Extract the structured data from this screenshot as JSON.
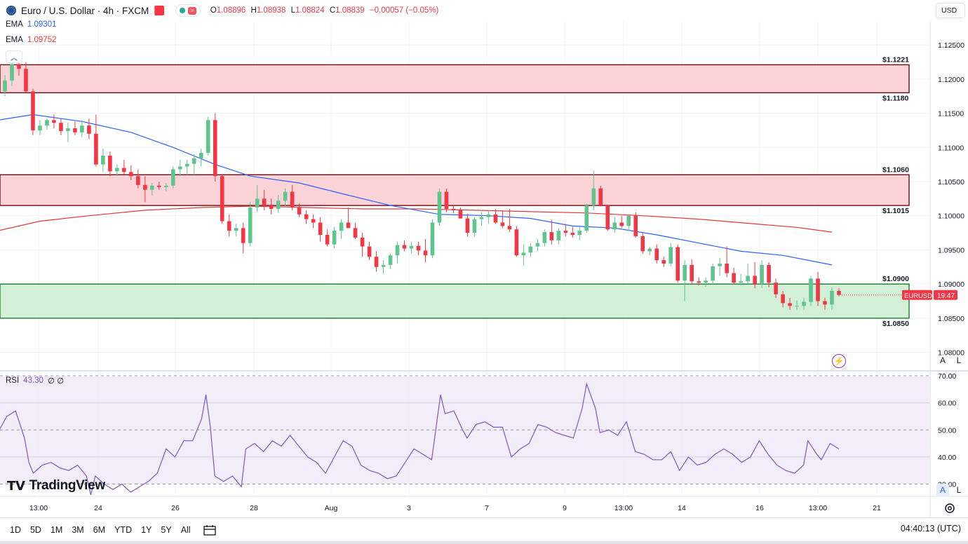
{
  "header": {
    "symbol_title": "Euro / U.S. Dollar · 4h · FXCM",
    "ohlc": {
      "o_label": "O",
      "o": "1.08896",
      "h_label": "H",
      "h": "1.08938",
      "l_label": "L",
      "l": "1.08824",
      "c_label": "C",
      "c": "1.08839",
      "change": "−0.00057 (−0.05%)"
    },
    "ema1": {
      "label": "EMA",
      "value": "1.09301"
    },
    "ema2": {
      "label": "EMA",
      "value": "1.09752"
    },
    "currency": "USD"
  },
  "colors": {
    "up": "#22ab94",
    "down": "#f23645",
    "up_fill": "#5fc48e",
    "ema_fast": "#2962ff",
    "ema_slow": "#e53935",
    "rsi": "#7e57c2",
    "zone_red_fill": "#fcd3d6",
    "zone_green_fill": "#d1f0d6"
  },
  "price_scale": {
    "labels": [
      "1.12500",
      "1.12000",
      "1.11500",
      "1.11000",
      "1.10500",
      "1.10000",
      "1.09500",
      "1.09000",
      "1.08500",
      "1.08000"
    ]
  },
  "rsi": {
    "label": "RSI",
    "value": "43.30",
    "extra": "∅ ∅",
    "scale_labels": [
      "70.00",
      "60.00",
      "50.00",
      "40.00",
      "30.00"
    ]
  },
  "time_axis": {
    "labels": [
      "13:00",
      "24",
      "26",
      "28",
      "Aug",
      "3",
      "7",
      "9",
      "13:00",
      "14",
      "16",
      "13:00",
      "21"
    ]
  },
  "price_tag": {
    "symbol": "EURUSD",
    "countdown": "19:47"
  },
  "toolbar": {
    "timeframes": [
      "1D",
      "5D",
      "1M",
      "3M",
      "6M",
      "YTD",
      "1Y",
      "5Y",
      "All"
    ],
    "clock": "04:40:13 (UTC)"
  },
  "scale_buttons": {
    "auto": "A",
    "log": "L"
  },
  "brand": "TradingView",
  "chart_data": {
    "type": "candlestick",
    "title": "Euro / U.S. Dollar · 4h · FXCM",
    "y_range": [
      1.0775,
      1.1285
    ],
    "zones": [
      {
        "label_top": "$1.1221",
        "label_bottom": "$1.1180",
        "top": 1.1221,
        "bottom": 1.118,
        "color": "red"
      },
      {
        "label_top": "$1.1060",
        "label_bottom": "$1.1015",
        "top": 1.106,
        "bottom": 1.1015,
        "color": "red"
      },
      {
        "label_top": "$1.0900",
        "label_bottom": "$1.0850",
        "top": 1.09,
        "bottom": 1.085,
        "color": "green"
      }
    ],
    "candles": [
      [
        1.12,
        1.1221,
        1.1172,
        1.1182
      ],
      [
        1.1182,
        1.1206,
        1.1175,
        1.1198
      ],
      [
        1.1198,
        1.1228,
        1.119,
        1.1222
      ],
      [
        1.1222,
        1.1232,
        1.1205,
        1.1215
      ],
      [
        1.1215,
        1.1225,
        1.118,
        1.1182
      ],
      [
        1.1182,
        1.1186,
        1.1118,
        1.1125
      ],
      [
        1.1125,
        1.114,
        1.1118,
        1.1132
      ],
      [
        1.1132,
        1.1142,
        1.1126,
        1.114
      ],
      [
        1.114,
        1.1148,
        1.1128,
        1.1136
      ],
      [
        1.1136,
        1.1142,
        1.1118,
        1.1124
      ],
      [
        1.1124,
        1.1136,
        1.1108,
        1.1128
      ],
      [
        1.1128,
        1.1138,
        1.1118,
        1.1122
      ],
      [
        1.1122,
        1.114,
        1.1115,
        1.1132
      ],
      [
        1.1132,
        1.1142,
        1.1112,
        1.112
      ],
      [
        1.112,
        1.1148,
        1.1072,
        1.1075
      ],
      [
        1.1075,
        1.1098,
        1.1064,
        1.1088
      ],
      [
        1.1088,
        1.1094,
        1.1058,
        1.1065
      ],
      [
        1.1065,
        1.1075,
        1.1058,
        1.107
      ],
      [
        1.107,
        1.1082,
        1.106,
        1.1064
      ],
      [
        1.1064,
        1.1074,
        1.1052,
        1.1058
      ],
      [
        1.1058,
        1.1068,
        1.104,
        1.1045
      ],
      [
        1.1045,
        1.1058,
        1.102,
        1.1038
      ],
      [
        1.1038,
        1.1048,
        1.103,
        1.1044
      ],
      [
        1.1044,
        1.105,
        1.1038,
        1.1042
      ],
      [
        1.1042,
        1.1048,
        1.1036,
        1.1044
      ],
      [
        1.1044,
        1.1072,
        1.104,
        1.1068
      ],
      [
        1.1068,
        1.1082,
        1.1058,
        1.1072
      ],
      [
        1.1072,
        1.1082,
        1.106,
        1.1076
      ],
      [
        1.1076,
        1.109,
        1.106,
        1.1084
      ],
      [
        1.1084,
        1.1098,
        1.1072,
        1.1092
      ],
      [
        1.1092,
        1.1145,
        1.1088,
        1.114
      ],
      [
        1.114,
        1.115,
        1.105,
        1.1058
      ],
      [
        1.1058,
        1.106,
        1.0988,
        1.0992
      ],
      [
        1.0992,
        1.1002,
        1.097,
        1.0978
      ],
      [
        1.0978,
        1.0988,
        1.097,
        1.0982
      ],
      [
        1.0982,
        1.099,
        1.0945,
        1.096
      ],
      [
        1.096,
        1.102,
        1.0955,
        1.1012
      ],
      [
        1.1012,
        1.1045,
        1.1005,
        1.1025
      ],
      [
        1.1025,
        1.1038,
        1.1008,
        1.1015
      ],
      [
        1.1015,
        1.1025,
        1.1002,
        1.101
      ],
      [
        1.101,
        1.103,
        1.1004,
        1.1022
      ],
      [
        1.1022,
        1.104,
        1.1012,
        1.1035
      ],
      [
        1.1035,
        1.1045,
        1.1008,
        1.1012
      ],
      [
        1.1012,
        1.1018,
        1.0998,
        1.1002
      ],
      [
        1.1002,
        1.1008,
        1.0988,
        1.0995
      ],
      [
        1.0995,
        1.1002,
        1.0982,
        1.099
      ],
      [
        1.099,
        1.0998,
        1.0962,
        1.0972
      ],
      [
        1.0972,
        1.098,
        1.0955,
        1.0958
      ],
      [
        1.0958,
        1.0984,
        1.0952,
        1.0978
      ],
      [
        1.0978,
        1.0995,
        1.0966,
        1.099
      ],
      [
        1.099,
        1.1012,
        1.0982,
        1.0982
      ],
      [
        1.0982,
        1.099,
        1.0966,
        1.0968
      ],
      [
        1.0968,
        1.0975,
        1.094,
        1.0955
      ],
      [
        1.0955,
        1.0962,
        1.0935,
        1.094
      ],
      [
        1.094,
        1.0948,
        1.0918,
        1.0925
      ],
      [
        1.0925,
        1.0935,
        1.0915,
        1.0928
      ],
      [
        1.0928,
        1.0944,
        1.0922,
        1.0942
      ],
      [
        1.0942,
        1.0962,
        1.093,
        1.0957
      ],
      [
        1.0957,
        1.0964,
        1.0948,
        1.0952
      ],
      [
        1.0952,
        1.0962,
        1.0945,
        1.0956
      ],
      [
        1.0956,
        1.0962,
        1.0942,
        1.0949
      ],
      [
        1.0949,
        1.0966,
        1.0932,
        1.0942
      ],
      [
        1.0942,
        1.0995,
        1.0938,
        1.099
      ],
      [
        1.099,
        1.104,
        1.0985,
        1.1035
      ],
      [
        1.1035,
        1.104,
        1.1005,
        1.101
      ],
      [
        1.101,
        1.1016,
        1.1004,
        1.1008
      ],
      [
        1.1008,
        1.1012,
        1.0998,
        1.0996
      ],
      [
        1.0996,
        1.1003,
        1.097,
        1.0975
      ],
      [
        1.0975,
        1.0998,
        1.097,
        1.0995
      ],
      [
        1.0995,
        1.1005,
        1.0985,
        1.0998
      ],
      [
        1.0998,
        1.1008,
        1.0988,
        1.1002
      ],
      [
        1.1002,
        1.101,
        1.0988,
        1.099
      ],
      [
        1.099,
        1.1008,
        1.0982,
        1.0985
      ],
      [
        1.0985,
        1.101,
        1.0976,
        1.098
      ],
      [
        1.098,
        1.0985,
        1.094,
        1.0942
      ],
      [
        1.0942,
        1.0958,
        1.0928,
        1.0946
      ],
      [
        1.0946,
        1.096,
        1.094,
        1.0955
      ],
      [
        1.0955,
        1.0966,
        1.0948,
        1.096
      ],
      [
        1.096,
        1.098,
        1.0955,
        1.0976
      ],
      [
        1.0976,
        1.0994,
        1.0958,
        1.0964
      ],
      [
        1.0964,
        1.0982,
        1.0958,
        1.0978
      ],
      [
        1.0978,
        1.0988,
        1.097,
        1.0975
      ],
      [
        1.0975,
        1.0984,
        1.0968,
        1.0972
      ],
      [
        1.0972,
        1.0984,
        1.0964,
        1.0978
      ],
      [
        1.0978,
        1.1018,
        1.0975,
        1.1015
      ],
      [
        1.1015,
        1.1066,
        1.1008,
        1.104
      ],
      [
        1.104,
        1.1044,
        1.1015,
        1.1015
      ],
      [
        1.1015,
        1.1016,
        1.0978,
        1.098
      ],
      [
        1.098,
        1.0998,
        1.0975,
        1.099
      ],
      [
        1.099,
        1.1,
        1.0982,
        1.0985
      ],
      [
        1.0985,
        1.1002,
        1.0978,
        1.1
      ],
      [
        1.1,
        1.1005,
        1.0968,
        1.097
      ],
      [
        1.097,
        1.0975,
        1.0944,
        1.0948
      ],
      [
        1.0948,
        1.0955,
        1.0942,
        1.0952
      ],
      [
        1.0952,
        1.0958,
        1.093,
        1.0935
      ],
      [
        1.0935,
        1.094,
        1.0925,
        1.093
      ],
      [
        1.093,
        1.096,
        1.0926,
        1.0954
      ],
      [
        1.0954,
        1.0958,
        1.0902,
        1.0905
      ],
      [
        1.0905,
        1.0935,
        1.0875,
        1.0928
      ],
      [
        1.0928,
        1.0936,
        1.09,
        1.0904
      ],
      [
        1.0904,
        1.091,
        1.0898,
        1.0902
      ],
      [
        1.0902,
        1.091,
        1.0896,
        1.0905
      ],
      [
        1.0905,
        1.093,
        1.09,
        1.0926
      ],
      [
        1.0926,
        1.0938,
        1.0912,
        1.093
      ],
      [
        1.093,
        1.0955,
        1.091,
        1.0916
      ],
      [
        1.0916,
        1.0924,
        1.09,
        1.0902
      ],
      [
        1.0902,
        1.0915,
        1.0898,
        1.0904
      ],
      [
        1.0904,
        1.093,
        1.09,
        1.0912
      ],
      [
        1.0912,
        1.0932,
        1.0894,
        1.09
      ],
      [
        1.09,
        1.0935,
        1.0894,
        1.0928
      ],
      [
        1.0928,
        1.0932,
        1.0895,
        1.0902
      ],
      [
        1.0902,
        1.0908,
        1.088,
        1.0885
      ],
      [
        1.0885,
        1.089,
        1.0866,
        1.0872
      ],
      [
        1.0872,
        1.088,
        1.0862,
        1.0868
      ],
      [
        1.0868,
        1.0876,
        1.0862,
        1.0868
      ],
      [
        1.0868,
        1.088,
        1.0862,
        1.0874
      ],
      [
        1.0874,
        1.0912,
        1.0868,
        1.0908
      ],
      [
        1.0908,
        1.0918,
        1.0868,
        1.0875
      ],
      [
        1.0875,
        1.088,
        1.0862,
        1.087
      ],
      [
        1.087,
        1.0895,
        1.0862,
        1.089
      ],
      [
        1.089,
        1.0894,
        1.0882,
        1.0884
      ]
    ],
    "ema_fast": [
      [
        0,
        1.114
      ],
      [
        5,
        1.1148
      ],
      [
        12,
        1.1138
      ],
      [
        19,
        1.1122
      ],
      [
        25,
        1.11
      ],
      [
        31,
        1.1075
      ],
      [
        36,
        1.1058
      ],
      [
        43,
        1.1048
      ],
      [
        50,
        1.103
      ],
      [
        56,
        1.1015
      ],
      [
        63,
        1.1002
      ],
      [
        70,
        1.1
      ],
      [
        76,
        1.0996
      ],
      [
        82,
        1.0985
      ],
      [
        88,
        1.0982
      ],
      [
        94,
        1.0972
      ],
      [
        100,
        1.096
      ],
      [
        106,
        1.0948
      ],
      [
        112,
        1.0942
      ],
      [
        119,
        1.0928
      ]
    ],
    "ema_slow": [
      [
        0,
        1.0978
      ],
      [
        6,
        1.0992
      ],
      [
        13,
        1.1
      ],
      [
        21,
        1.1008
      ],
      [
        29,
        1.1012
      ],
      [
        36,
        1.1014
      ],
      [
        44,
        1.1012
      ],
      [
        52,
        1.101
      ],
      [
        60,
        1.101
      ],
      [
        68,
        1.1008
      ],
      [
        76,
        1.1006
      ],
      [
        84,
        1.1004
      ],
      [
        92,
        1.1
      ],
      [
        100,
        1.0995
      ],
      [
        108,
        1.0988
      ],
      [
        114,
        1.0983
      ],
      [
        119,
        1.0976
      ]
    ],
    "rsi_series": [
      [
        0,
        49
      ],
      [
        2,
        55
      ],
      [
        4,
        57
      ],
      [
        6,
        47
      ],
      [
        7,
        38
      ],
      [
        8,
        34
      ],
      [
        10,
        37
      ],
      [
        12,
        38
      ],
      [
        14,
        36
      ],
      [
        16,
        35
      ],
      [
        18,
        37
      ],
      [
        20,
        33
      ],
      [
        21,
        26
      ],
      [
        22,
        33
      ],
      [
        24,
        30
      ],
      [
        26,
        28
      ],
      [
        28,
        30
      ],
      [
        30,
        27
      ],
      [
        32,
        29
      ],
      [
        34,
        31
      ],
      [
        36,
        34
      ],
      [
        38,
        43
      ],
      [
        40,
        40
      ],
      [
        42,
        46
      ],
      [
        44,
        46
      ],
      [
        46,
        54
      ],
      [
        47,
        63
      ],
      [
        48,
        51
      ],
      [
        49,
        33
      ],
      [
        51,
        31
      ],
      [
        53,
        33
      ],
      [
        55,
        29
      ],
      [
        56,
        43
      ],
      [
        58,
        45
      ],
      [
        60,
        42
      ],
      [
        62,
        46
      ],
      [
        64,
        44
      ],
      [
        66,
        48
      ],
      [
        68,
        44
      ],
      [
        70,
        40
      ],
      [
        72,
        38
      ],
      [
        74,
        34
      ],
      [
        76,
        40
      ],
      [
        78,
        46
      ],
      [
        80,
        44
      ],
      [
        82,
        37
      ],
      [
        84,
        35
      ],
      [
        86,
        34
      ],
      [
        88,
        32
      ],
      [
        90,
        33
      ],
      [
        92,
        38
      ],
      [
        94,
        43
      ],
      [
        96,
        41
      ],
      [
        98,
        39
      ],
      [
        100,
        63
      ],
      [
        101,
        56
      ],
      [
        103,
        57
      ],
      [
        105,
        50
      ],
      [
        106,
        47
      ],
      [
        108,
        52
      ],
      [
        110,
        53
      ],
      [
        112,
        51
      ],
      [
        114,
        51
      ],
      [
        116,
        40
      ],
      [
        118,
        43
      ],
      [
        120,
        45
      ],
      [
        122,
        52
      ],
      [
        124,
        51
      ],
      [
        126,
        49
      ],
      [
        128,
        48
      ],
      [
        130,
        47
      ],
      [
        132,
        58
      ],
      [
        133,
        67
      ],
      [
        135,
        58
      ],
      [
        136,
        49
      ],
      [
        138,
        50
      ],
      [
        140,
        48
      ],
      [
        142,
        53
      ],
      [
        144,
        42
      ],
      [
        146,
        41
      ],
      [
        148,
        39
      ],
      [
        150,
        39
      ],
      [
        152,
        42
      ],
      [
        154,
        35
      ],
      [
        156,
        40
      ],
      [
        158,
        37
      ],
      [
        160,
        38
      ],
      [
        162,
        41
      ],
      [
        164,
        43
      ],
      [
        166,
        41
      ],
      [
        168,
        38
      ],
      [
        170,
        40
      ],
      [
        172,
        46
      ],
      [
        174,
        41
      ],
      [
        176,
        37
      ],
      [
        178,
        35
      ],
      [
        180,
        34
      ],
      [
        182,
        37
      ],
      [
        183,
        46
      ],
      [
        185,
        41
      ],
      [
        186,
        39
      ],
      [
        188,
        45
      ],
      [
        190,
        43
      ]
    ],
    "rsi_range": [
      26,
      70
    ],
    "rsi_label": "RSI",
    "rsi_last": 43.3
  }
}
